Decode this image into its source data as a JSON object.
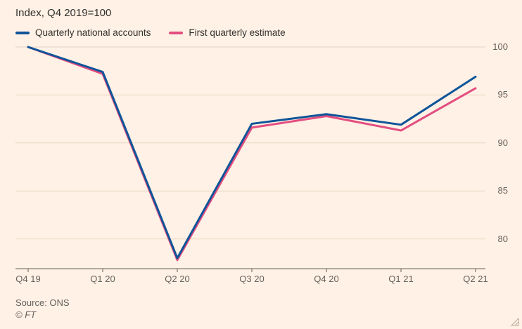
{
  "title": "Index, Q4 2019=100",
  "legend": [
    {
      "label": "Quarterly national accounts",
      "color": "#0f5499"
    },
    {
      "label": "First quarterly estimate",
      "color": "#e34e80"
    }
  ],
  "footer": {
    "source": "Source: ONS",
    "copyright": "© FT"
  },
  "colors": {
    "background": "#FFF1E5",
    "gridline": "#e6d4c2",
    "axis": "#66605c",
    "text": "#33302e",
    "muted_text": "#66605c",
    "series_blue": "#0f5499",
    "series_pink": "#e34e80"
  },
  "chart_data": {
    "type": "line",
    "title": "Index, Q4 2019=100",
    "xlabel": "",
    "ylabel": "",
    "categories": [
      "Q4 19",
      "Q1 20",
      "Q2 20",
      "Q3 20",
      "Q4 20",
      "Q1 21",
      "Q2 21"
    ],
    "series": [
      {
        "name": "Quarterly national accounts",
        "color": "#0f5499",
        "values": [
          100,
          97.4,
          78.0,
          92.0,
          93.0,
          91.9,
          96.9
        ]
      },
      {
        "name": "First quarterly estimate",
        "color": "#e34e80",
        "values": [
          100,
          97.2,
          77.8,
          91.6,
          92.8,
          91.3,
          95.7
        ]
      }
    ],
    "ylim": [
      76.9,
      100
    ],
    "yticks": [
      80,
      85,
      90,
      95,
      100
    ],
    "grid": true,
    "legend_position": "top-left",
    "source": "Source: ONS"
  }
}
